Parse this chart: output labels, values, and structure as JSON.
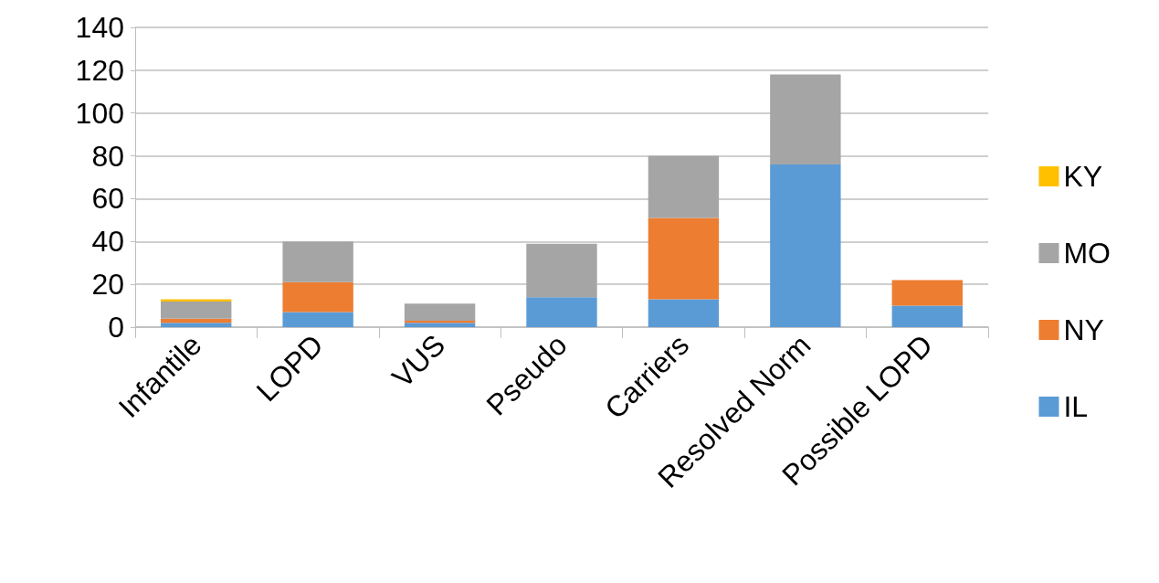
{
  "chart_data": {
    "type": "bar",
    "stacked": true,
    "categories": [
      "Infantile",
      "LOPD",
      "VUS",
      "Pseudo",
      "Carriers",
      "Resolved Norm",
      "Possible LOPD"
    ],
    "series": [
      {
        "name": "IL",
        "color": "#5b9bd5",
        "values": [
          2,
          7,
          2,
          14,
          13,
          76,
          10
        ]
      },
      {
        "name": "NY",
        "color": "#ed7d31",
        "values": [
          2,
          14,
          1,
          0,
          38,
          0,
          12
        ]
      },
      {
        "name": "MO",
        "color": "#a5a5a5",
        "values": [
          8,
          19,
          8,
          25,
          29,
          42,
          0
        ]
      },
      {
        "name": "KY",
        "color": "#ffc000",
        "values": [
          1,
          0,
          0,
          0,
          0,
          0,
          0
        ]
      }
    ],
    "ylim": [
      0,
      140
    ],
    "yticks": [
      0,
      20,
      40,
      60,
      80,
      100,
      120,
      140
    ],
    "grid": "y",
    "legend": "right"
  }
}
